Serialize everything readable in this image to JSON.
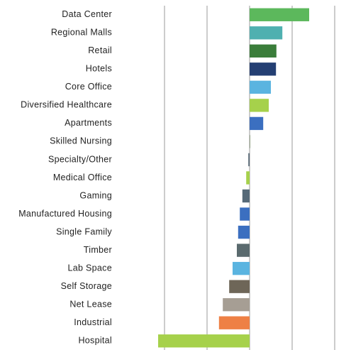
{
  "chart_data": {
    "type": "bar",
    "orientation": "horizontal",
    "categories": [
      "Data Center",
      "Regional Malls",
      "Retail",
      "Hotels",
      "Core Office",
      "Diversified Healthcare",
      "Apartments",
      "Skilled Nursing",
      "Specialty/Other",
      "Medical Office",
      "Gaming",
      "Manufactured Housing",
      "Single Family",
      "Timber",
      "Lab Space",
      "Self Storage",
      "Net Lease",
      "Industrial",
      "Hospital"
    ],
    "values": [
      14,
      7.7,
      6.3,
      6.2,
      5,
      4.5,
      3.2,
      0.1,
      -0.3,
      -0.8,
      -1.7,
      -2.3,
      -2.7,
      -3,
      -4,
      -4.8,
      -6.3,
      -7.2,
      -21.5
    ],
    "colors": [
      "#5cb85c",
      "#4fb0b0",
      "#3a7d3a",
      "#243f73",
      "#5ab4e0",
      "#a6d14b",
      "#3b6fc0",
      "#7a8c6a",
      "#5a6a78",
      "#a6d14b",
      "#566a78",
      "#3b6fc0",
      "#3b6fc0",
      "#5a6a6e",
      "#5ab4e0",
      "#6e6658",
      "#a69e94",
      "#ee8045",
      "#a6d14b"
    ],
    "xlim": [
      -22.5,
      21
    ],
    "xticks": [
      -20,
      -10,
      0,
      10,
      20
    ],
    "grid": true
  }
}
